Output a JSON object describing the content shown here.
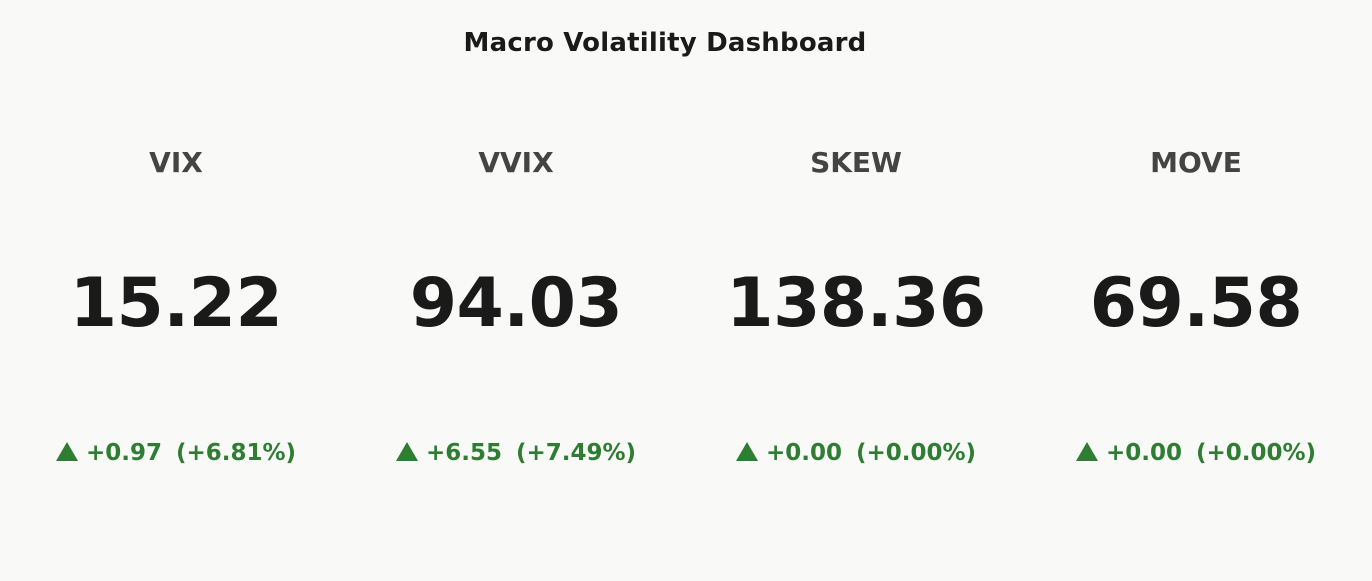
{
  "chart_data": {
    "type": "table",
    "title": "Macro Volatility Dashboard",
    "accent_color": "#2e7d32",
    "indices": [
      {
        "name": "VIX",
        "value": "15.22",
        "change": "+0.97",
        "change_pct": "(+6.81%)",
        "direction": "up-triangle-icon"
      },
      {
        "name": "VVIX",
        "value": "94.03",
        "change": "+6.55",
        "change_pct": "(+7.49%)",
        "direction": "up-triangle-icon"
      },
      {
        "name": "SKEW",
        "value": "138.36",
        "change": "+0.00",
        "change_pct": "(+0.00%)",
        "direction": "up-triangle-icon"
      },
      {
        "name": "MOVE",
        "value": "69.58",
        "change": "+0.00",
        "change_pct": "(+0.00%)",
        "direction": "up-triangle-icon"
      }
    ]
  }
}
